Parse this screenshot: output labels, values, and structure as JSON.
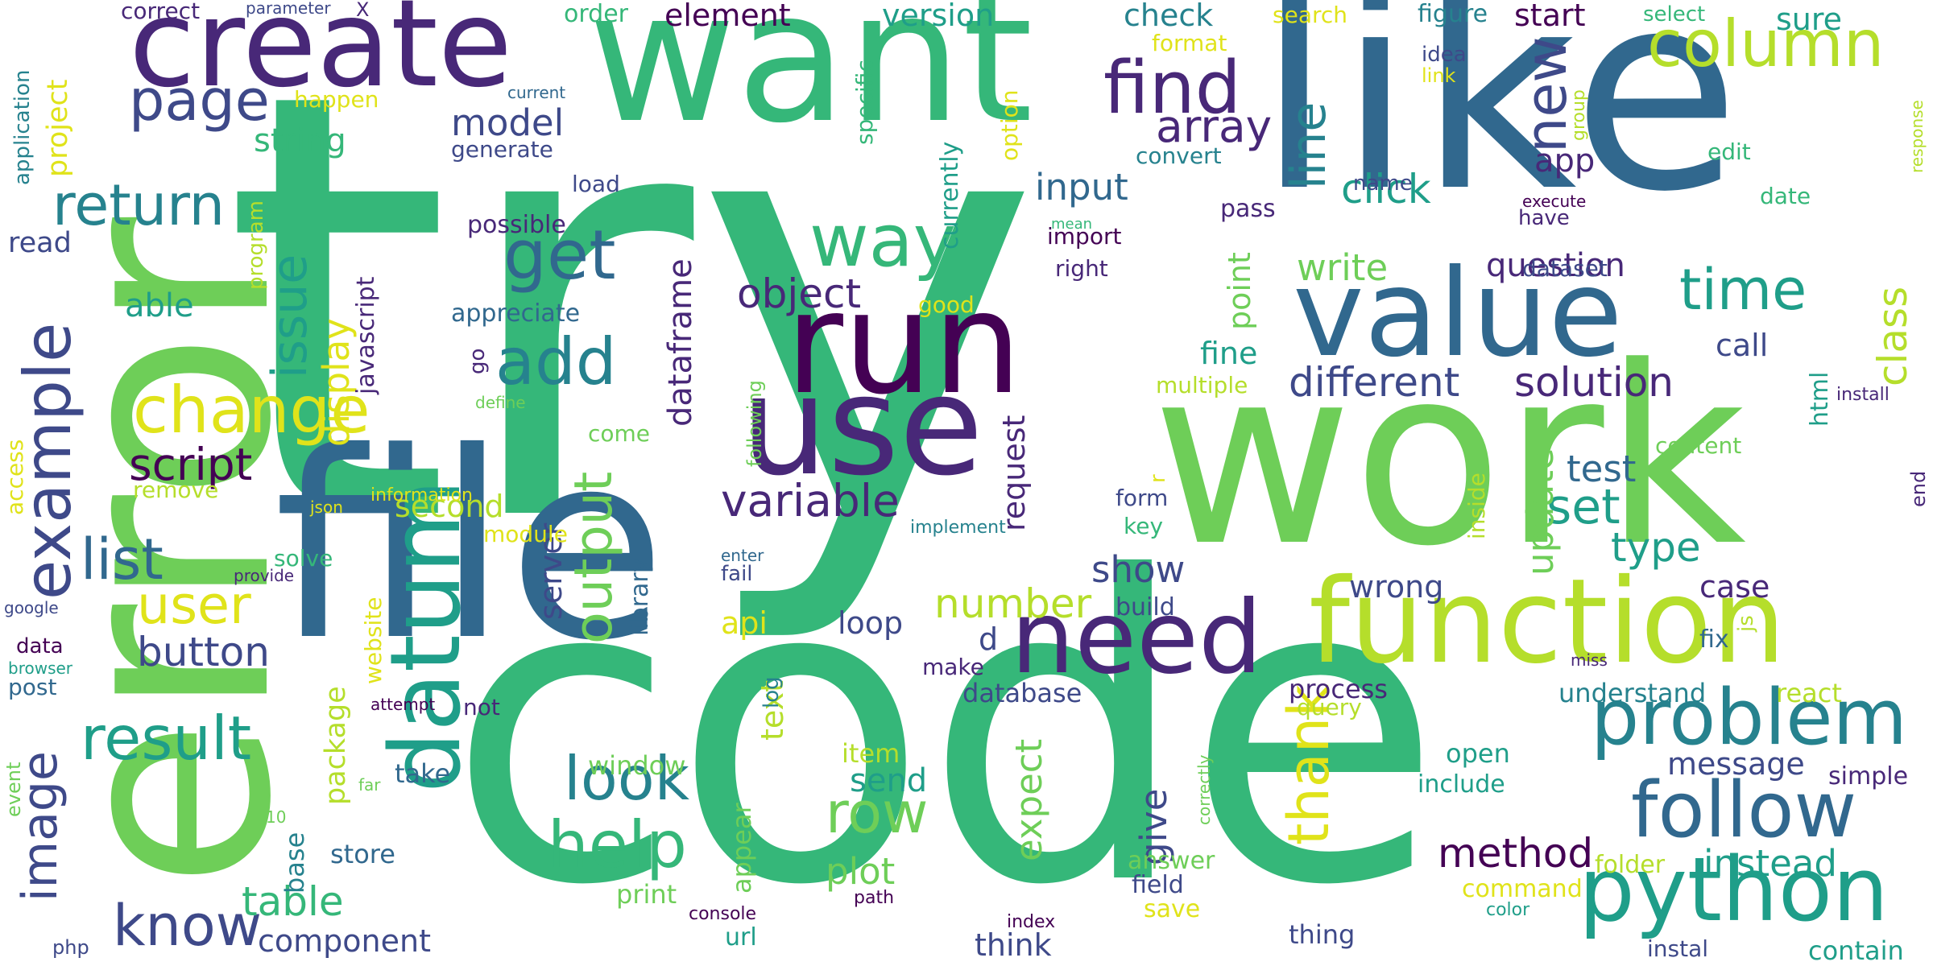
{
  "words": [
    {
      "text": "try",
      "color": "w7"
    },
    {
      "text": "code",
      "color": "w7"
    },
    {
      "text": "error",
      "color": "w8"
    },
    {
      "text": "like",
      "color": "w4"
    },
    {
      "text": "work",
      "color": "w8"
    },
    {
      "text": "want",
      "color": "w7"
    },
    {
      "text": "file",
      "color": "w4"
    },
    {
      "text": "create",
      "color": "w2"
    },
    {
      "text": "run",
      "color": "w1"
    },
    {
      "text": "use",
      "color": "w2"
    },
    {
      "text": "value",
      "color": "w4"
    },
    {
      "text": "function",
      "color": "w9"
    },
    {
      "text": "datum",
      "color": "w6"
    },
    {
      "text": "need",
      "color": "w2"
    },
    {
      "text": "python",
      "color": "w6"
    },
    {
      "text": "follow",
      "color": "w4"
    },
    {
      "text": "problem",
      "color": "w5"
    },
    {
      "text": "find",
      "color": "w2"
    },
    {
      "text": "column",
      "color": "w9"
    },
    {
      "text": "example",
      "color": "w3"
    },
    {
      "text": "way",
      "color": "w7"
    },
    {
      "text": "get",
      "color": "w4"
    },
    {
      "text": "add",
      "color": "w5"
    },
    {
      "text": "change",
      "color": "w10"
    },
    {
      "text": "return",
      "color": "w5"
    },
    {
      "text": "page",
      "color": "w3"
    },
    {
      "text": "issue",
      "color": "w6"
    },
    {
      "text": "list",
      "color": "w4"
    },
    {
      "text": "user",
      "color": "w10"
    },
    {
      "text": "result",
      "color": "w6"
    },
    {
      "text": "image",
      "color": "w3"
    },
    {
      "text": "know",
      "color": "w3"
    },
    {
      "text": "look",
      "color": "w5"
    },
    {
      "text": "help",
      "color": "w7"
    },
    {
      "text": "row",
      "color": "w8"
    },
    {
      "text": "time",
      "color": "w6"
    },
    {
      "text": "new",
      "color": "w3"
    },
    {
      "text": "line",
      "color": "w5"
    },
    {
      "text": "array",
      "color": "w2"
    },
    {
      "text": "model",
      "color": "w3"
    },
    {
      "text": "object",
      "color": "w2"
    },
    {
      "text": "output",
      "color": "w8"
    },
    {
      "text": "variable",
      "color": "w2"
    },
    {
      "text": "script",
      "color": "w1"
    },
    {
      "text": "thank",
      "color": "w10"
    },
    {
      "text": "set",
      "color": "w6"
    },
    {
      "text": "method",
      "color": "w1"
    },
    {
      "text": "instead",
      "color": "w6"
    },
    {
      "text": "table",
      "color": "w7"
    },
    {
      "text": "button",
      "color": "w3"
    },
    {
      "text": "number",
      "color": "w9"
    },
    {
      "text": "different",
      "color": "w3"
    },
    {
      "text": "solution",
      "color": "w2"
    },
    {
      "text": "input",
      "color": "w4"
    },
    {
      "text": "click",
      "color": "w6"
    },
    {
      "text": "write",
      "color": "w8"
    },
    {
      "text": "question",
      "color": "w2"
    },
    {
      "text": "app",
      "color": "w2"
    },
    {
      "text": "show",
      "color": "w3"
    },
    {
      "text": "update",
      "color": "w8"
    },
    {
      "text": "test",
      "color": "w4"
    },
    {
      "text": "type",
      "color": "w6"
    },
    {
      "text": "class",
      "color": "w9"
    },
    {
      "text": "display",
      "color": "w10"
    },
    {
      "text": "dataframe",
      "color": "w2"
    },
    {
      "text": "server",
      "color": "w3"
    },
    {
      "text": "request",
      "color": "w2"
    },
    {
      "text": "expect",
      "color": "w8"
    },
    {
      "text": "give",
      "color": "w3"
    },
    {
      "text": "plot",
      "color": "w8"
    },
    {
      "text": "send",
      "color": "w6"
    },
    {
      "text": "message",
      "color": "w3"
    },
    {
      "text": "component",
      "color": "w3"
    },
    {
      "text": "check",
      "color": "w5"
    },
    {
      "text": "version",
      "color": "w6"
    },
    {
      "text": "element",
      "color": "w1"
    },
    {
      "text": "start",
      "color": "w1"
    },
    {
      "text": "sure",
      "color": "w6"
    },
    {
      "text": "string",
      "color": "w7"
    },
    {
      "text": "second",
      "color": "w9"
    },
    {
      "text": "able",
      "color": "w6"
    },
    {
      "text": "read",
      "color": "w3"
    },
    {
      "text": "project",
      "color": "w10"
    },
    {
      "text": "javascript",
      "color": "w2"
    },
    {
      "text": "possible",
      "color": "w2"
    },
    {
      "text": "appreciate",
      "color": "w4"
    },
    {
      "text": "loop",
      "color": "w3"
    },
    {
      "text": "wrong",
      "color": "w3"
    },
    {
      "text": "case",
      "color": "w2"
    },
    {
      "text": "fix",
      "color": "w4"
    },
    {
      "text": "call",
      "color": "w3"
    },
    {
      "text": "fine",
      "color": "w6"
    },
    {
      "text": "point",
      "color": "w8"
    },
    {
      "text": "text",
      "color": "w9"
    },
    {
      "text": "package",
      "color": "w9"
    },
    {
      "text": "website",
      "color": "w10"
    },
    {
      "text": "api",
      "color": "w10"
    },
    {
      "text": "library",
      "color": "w4"
    },
    {
      "text": "window",
      "color": "w8"
    },
    {
      "text": "item",
      "color": "w9"
    },
    {
      "text": "take",
      "color": "w4"
    },
    {
      "text": "base",
      "color": "w5"
    },
    {
      "text": "store",
      "color": "w4"
    },
    {
      "text": "print",
      "color": "w8"
    },
    {
      "text": "appear",
      "color": "w8"
    },
    {
      "text": "think",
      "color": "w3"
    },
    {
      "text": "database",
      "color": "w3"
    },
    {
      "text": "process",
      "color": "w2"
    },
    {
      "text": "query",
      "color": "w9"
    },
    {
      "text": "understand",
      "color": "w5"
    },
    {
      "text": "react",
      "color": "w9"
    },
    {
      "text": "open",
      "color": "w6"
    },
    {
      "text": "include",
      "color": "w6"
    },
    {
      "text": "simple",
      "color": "w2"
    },
    {
      "text": "contain",
      "color": "w6"
    },
    {
      "text": "folder",
      "color": "w9"
    },
    {
      "text": "command",
      "color": "w10"
    },
    {
      "text": "answer",
      "color": "w8"
    },
    {
      "text": "field",
      "color": "w3"
    },
    {
      "text": "save",
      "color": "w10"
    },
    {
      "text": "thing",
      "color": "w3"
    },
    {
      "text": "instal",
      "color": "w3"
    },
    {
      "text": "color",
      "color": "w6"
    },
    {
      "text": "index",
      "color": "w1"
    },
    {
      "text": "path",
      "color": "w1"
    },
    {
      "text": "console",
      "color": "w1"
    },
    {
      "text": "url",
      "color": "w6"
    },
    {
      "text": "php",
      "color": "w3"
    },
    {
      "text": "event",
      "color": "w8"
    },
    {
      "text": "far",
      "color": "w8"
    },
    {
      "text": "10",
      "color": "w8"
    },
    {
      "text": "attempt",
      "color": "w1"
    },
    {
      "text": "not",
      "color": "w2"
    },
    {
      "text": "make",
      "color": "w2"
    },
    {
      "text": "d",
      "color": "w3"
    },
    {
      "text": "build",
      "color": "w3"
    },
    {
      "text": "form",
      "color": "w3"
    },
    {
      "text": "key",
      "color": "w7"
    },
    {
      "text": "implement",
      "color": "w5"
    },
    {
      "text": "information",
      "color": "w10"
    },
    {
      "text": "module",
      "color": "w10"
    },
    {
      "text": "remove",
      "color": "w9"
    },
    {
      "text": "json",
      "color": "w10"
    },
    {
      "text": "provide",
      "color": "w2"
    },
    {
      "text": "solve",
      "color": "w7"
    },
    {
      "text": "enter",
      "color": "w4"
    },
    {
      "text": "fail",
      "color": "w3"
    },
    {
      "text": "log",
      "color": "w5"
    },
    {
      "text": "google",
      "color": "w3"
    },
    {
      "text": "data",
      "color": "w1"
    },
    {
      "text": "browser",
      "color": "w6"
    },
    {
      "text": "post",
      "color": "w4"
    },
    {
      "text": "access",
      "color": "w10"
    },
    {
      "text": "go",
      "color": "w2"
    },
    {
      "text": "define",
      "color": "w8"
    },
    {
      "text": "come",
      "color": "w8"
    },
    {
      "text": "following",
      "color": "w8"
    },
    {
      "text": "multiple",
      "color": "w9"
    },
    {
      "text": "html",
      "color": "w6"
    },
    {
      "text": "install",
      "color": "w2"
    },
    {
      "text": "content",
      "color": "w8"
    },
    {
      "text": "end",
      "color": "w2"
    },
    {
      "text": "inside",
      "color": "w9"
    },
    {
      "text": "js",
      "color": "w9"
    },
    {
      "text": "miss",
      "color": "w2"
    },
    {
      "text": "r",
      "color": "w10"
    },
    {
      "text": "correctly",
      "color": "w8"
    },
    {
      "text": "pass",
      "color": "w2"
    },
    {
      "text": "name",
      "color": "w3"
    },
    {
      "text": "have",
      "color": "w2"
    },
    {
      "text": "execute",
      "color": "w1"
    },
    {
      "text": "date",
      "color": "w7"
    },
    {
      "text": "edit",
      "color": "w7"
    },
    {
      "text": "response",
      "color": "w9"
    },
    {
      "text": "dataset",
      "color": "w3"
    },
    {
      "text": "group",
      "color": "w9"
    },
    {
      "text": "idea",
      "color": "w3"
    },
    {
      "text": "link",
      "color": "w10"
    },
    {
      "text": "figure",
      "color": "w5"
    },
    {
      "text": "select",
      "color": "w7"
    },
    {
      "text": "search",
      "color": "w10"
    },
    {
      "text": "format",
      "color": "w10"
    },
    {
      "text": "option",
      "color": "w10"
    },
    {
      "text": "specific",
      "color": "w7"
    },
    {
      "text": "currently",
      "color": "w6"
    },
    {
      "text": "convert",
      "color": "w5"
    },
    {
      "text": "mean",
      "color": "w7"
    },
    {
      "text": "import",
      "color": "w1"
    },
    {
      "text": "right",
      "color": "w2"
    },
    {
      "text": "good",
      "color": "w10"
    },
    {
      "text": "load",
      "color": "w3"
    },
    {
      "text": "generate",
      "color": "w3"
    },
    {
      "text": "order",
      "color": "w7"
    },
    {
      "text": "current",
      "color": "w4"
    },
    {
      "text": "happen",
      "color": "w10"
    },
    {
      "text": "program",
      "color": "w9"
    },
    {
      "text": "application",
      "color": "w5"
    },
    {
      "text": "parameter",
      "color": "w3"
    },
    {
      "text": "X",
      "color": "w2"
    },
    {
      "text": "correct",
      "color": "w2"
    }
  ]
}
